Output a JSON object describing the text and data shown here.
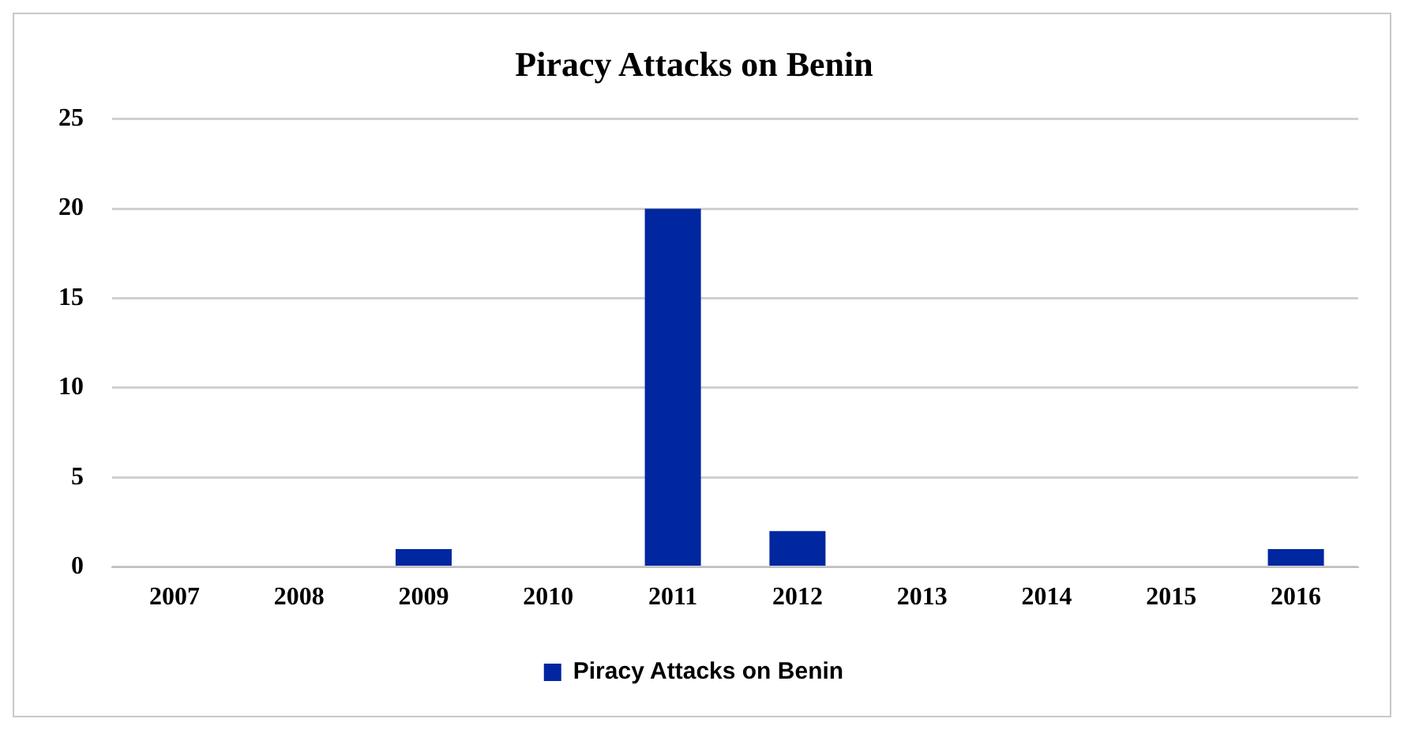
{
  "chart_data": {
    "type": "bar",
    "title": "Piracy Attacks on Benin",
    "categories": [
      "2007",
      "2008",
      "2009",
      "2010",
      "2011",
      "2012",
      "2013",
      "2014",
      "2015",
      "2016"
    ],
    "series": [
      {
        "name": "Piracy Attacks on Benin",
        "color": "#0026a0",
        "values": [
          0,
          0,
          1,
          0,
          20,
          2,
          0,
          0,
          0,
          1
        ]
      }
    ],
    "ylim": [
      0,
      25
    ],
    "yticks": [
      0,
      5,
      10,
      15,
      20,
      25
    ],
    "grid": "y",
    "legend": "bottom"
  }
}
